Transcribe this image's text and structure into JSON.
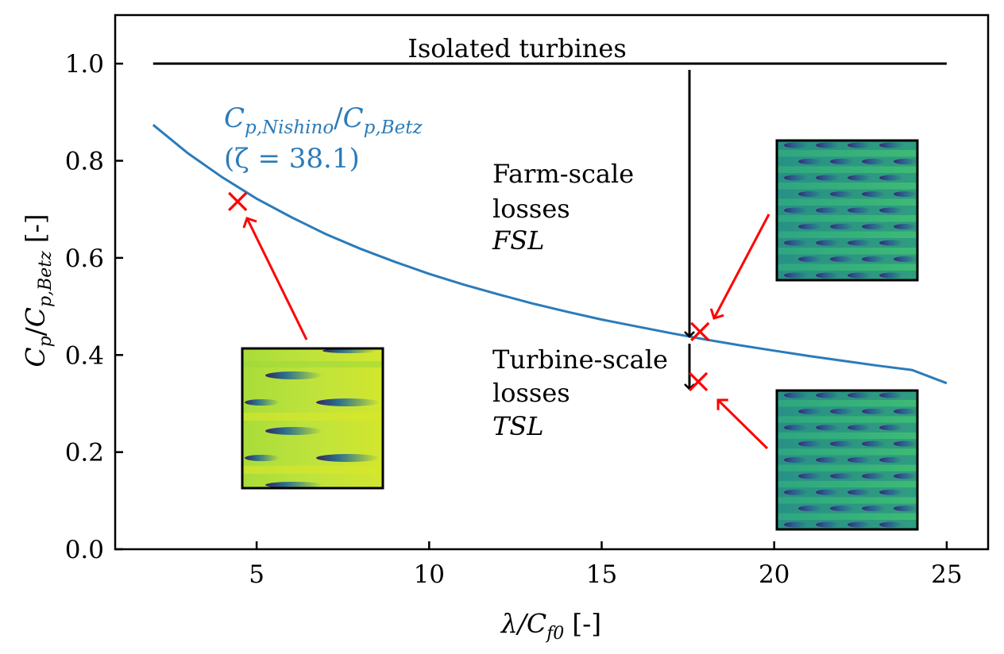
{
  "chart_data": {
    "type": "line",
    "xlabel": "λ/C_f0 [-]",
    "xlabel_parts": {
      "var": "λ/C",
      "sub": "f0",
      "unit": "[-]"
    },
    "ylabel": "C_p/C_p,Betz [-]",
    "ylabel_parts": {
      "v1": "C",
      "s1": "p",
      "slash": "/",
      "v2": "C",
      "s2": "p,Betz",
      "unit": "[-]"
    },
    "xlim": [
      0.9,
      26.2
    ],
    "ylim": [
      0.0,
      1.1
    ],
    "xticks": [
      5,
      10,
      15,
      20,
      25
    ],
    "xtick_labels": [
      "5",
      "10",
      "15",
      "20",
      "25"
    ],
    "yticks": [
      0.0,
      0.2,
      0.4,
      0.6,
      0.8,
      1.0
    ],
    "ytick_labels": [
      "0.0",
      "0.2",
      "0.4",
      "0.6",
      "0.8",
      "1.0"
    ],
    "series": [
      {
        "name": "Isolated turbines",
        "color": "#000000",
        "x": [
          2,
          25
        ],
        "y": [
          1.0,
          1.0
        ]
      },
      {
        "name": "Cp,Nishino/Cp,Betz (ζ = 38.1)",
        "color": "#1f77b4",
        "x": [
          2,
          3,
          4,
          5,
          6,
          7,
          8,
          9,
          10,
          11,
          12,
          13,
          14,
          15,
          16,
          17,
          18,
          19,
          20,
          21,
          22,
          23,
          24,
          25
        ],
        "y": [
          0.874,
          0.816,
          0.766,
          0.722,
          0.684,
          0.649,
          0.619,
          0.592,
          0.567,
          0.545,
          0.525,
          0.506,
          0.489,
          0.473,
          0.459,
          0.445,
          0.432,
          0.42,
          0.409,
          0.398,
          0.388,
          0.378,
          0.369,
          0.342
        ]
      }
    ],
    "markers": [
      {
        "name": "les-marker-left",
        "x": 4.45,
        "y": 0.716,
        "color": "#ff0000"
      },
      {
        "name": "les-marker-farm",
        "x": 17.85,
        "y": 0.448,
        "color": "#ff0000"
      },
      {
        "name": "les-marker-turbine",
        "x": 17.8,
        "y": 0.345,
        "color": "#ff0000"
      }
    ],
    "annotations": {
      "isolated": "Isolated turbines",
      "nishino_label": {
        "v1": "C",
        "s1": "p,Nishino",
        "slash": "/",
        "v2": "C",
        "s2": "p,Betz"
      },
      "zeta": "(ζ = 38.1)",
      "fsl_lines": [
        "Farm-scale",
        "losses",
        "FSL"
      ],
      "tsl_lines": [
        "Turbine-scale",
        "losses",
        "TSL"
      ]
    },
    "colors": {
      "curve": "#2b7bb9",
      "marker": "#ff0000",
      "arrow": "#ff0000",
      "inset_left": "#b4de2c",
      "inset_right": "#21918c",
      "wake": "#3b2873"
    }
  }
}
